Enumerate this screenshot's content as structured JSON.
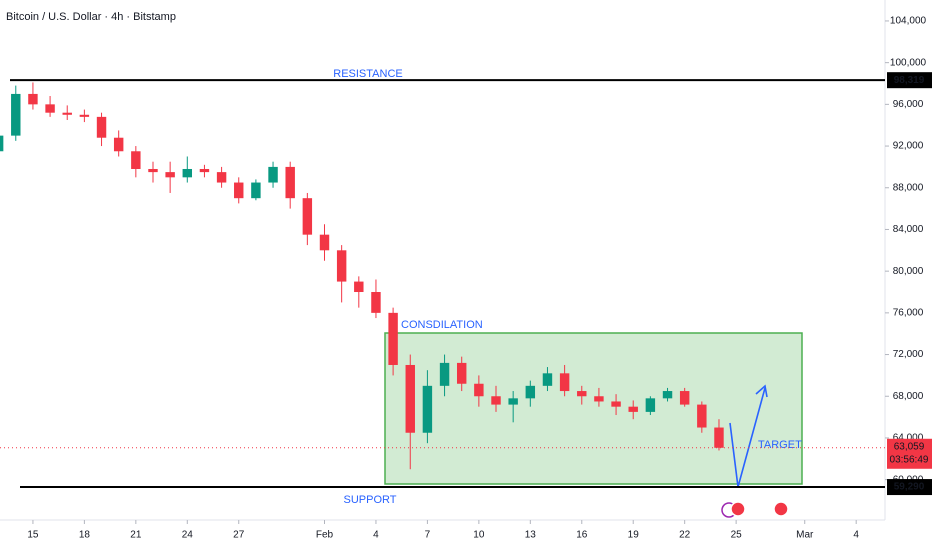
{
  "chart_data": {
    "type": "candlestick",
    "title": "Bitcoin / U.S. Dollar · 4h · Bitstamp",
    "x": [
      -2,
      -1,
      0,
      1,
      2,
      3,
      4,
      5,
      6,
      7,
      8,
      9,
      10,
      11,
      12,
      13,
      14,
      15,
      16,
      17,
      18,
      19,
      20,
      21,
      22,
      23,
      24,
      25,
      26,
      27,
      28,
      29,
      30,
      31,
      32,
      33,
      34,
      35,
      36,
      37,
      38,
      39,
      40
    ],
    "open": [
      91500,
      93000,
      97000,
      96000,
      95200,
      95000,
      94800,
      92800,
      91500,
      89800,
      89500,
      89000,
      89800,
      89500,
      88500,
      87000,
      88500,
      90000,
      87000,
      83500,
      82000,
      79000,
      78000,
      76000,
      71000,
      64500,
      69000,
      71200,
      69200,
      68000,
      67200,
      67800,
      69000,
      70200,
      68500,
      68000,
      67500,
      67000,
      66500,
      67800,
      68500,
      67200,
      65000
    ],
    "high": [
      93500,
      97800,
      98100,
      96800,
      95900,
      95500,
      95200,
      93500,
      92000,
      90500,
      90500,
      91000,
      90200,
      90000,
      89000,
      88800,
      90500,
      90500,
      87500,
      84500,
      82500,
      79500,
      79200,
      76500,
      72000,
      70500,
      72000,
      71800,
      70000,
      69000,
      68500,
      69500,
      70800,
      71000,
      69000,
      68800,
      68200,
      67600,
      68000,
      68800,
      68800,
      67500,
      65800
    ],
    "low": [
      91000,
      92500,
      95500,
      94800,
      94500,
      94300,
      92000,
      91000,
      89000,
      88500,
      87500,
      88500,
      89000,
      88000,
      86500,
      86800,
      88000,
      86000,
      82500,
      81000,
      77000,
      76500,
      75500,
      70000,
      61000,
      63500,
      68000,
      68500,
      67000,
      66500,
      65500,
      67000,
      68500,
      68000,
      67200,
      67000,
      66200,
      65800,
      66200,
      67500,
      67000,
      64500,
      62800
    ],
    "close": [
      93000,
      97000,
      96000,
      95200,
      95000,
      94800,
      92800,
      91500,
      89800,
      89500,
      89000,
      89800,
      89500,
      88500,
      87000,
      88500,
      90000,
      87000,
      83500,
      82000,
      79000,
      78000,
      76000,
      71000,
      64500,
      69000,
      71200,
      69200,
      68000,
      67200,
      67800,
      69000,
      70200,
      68500,
      68000,
      67500,
      67000,
      66500,
      67800,
      68500,
      67200,
      65000,
      63059
    ],
    "up_color": "#089981",
    "down_color": "#f23645",
    "xlim": [
      -1.92,
      49.68
    ],
    "xticks": [
      {
        "value": 0,
        "label": "15"
      },
      {
        "value": 3,
        "label": "18"
      },
      {
        "value": 6,
        "label": "21"
      },
      {
        "value": 9,
        "label": "24"
      },
      {
        "value": 12,
        "label": "27"
      },
      {
        "value": 17,
        "label": "Feb"
      },
      {
        "value": 20,
        "label": "4"
      },
      {
        "value": 23,
        "label": "7"
      },
      {
        "value": 26,
        "label": "10"
      },
      {
        "value": 29,
        "label": "13"
      },
      {
        "value": 32,
        "label": "16"
      },
      {
        "value": 35,
        "label": "19"
      },
      {
        "value": 38,
        "label": "22"
      },
      {
        "value": 41,
        "label": "25"
      },
      {
        "value": 45,
        "label": "Mar"
      },
      {
        "value": 48,
        "label": "4"
      }
    ],
    "ylim": [
      56130,
      106010
    ],
    "yticks": [
      {
        "value": 60000,
        "label": "60,000"
      },
      {
        "value": 64000,
        "label": "64,000"
      },
      {
        "value": 68000,
        "label": "68,000"
      },
      {
        "value": 72000,
        "label": "72,000"
      },
      {
        "value": 76000,
        "label": "76,000"
      },
      {
        "value": 80000,
        "label": "80,000"
      },
      {
        "value": 84000,
        "label": "84,000"
      },
      {
        "value": 88000,
        "label": "88,000"
      },
      {
        "value": 92000,
        "label": "92,000"
      },
      {
        "value": 96000,
        "label": "96,000"
      },
      {
        "value": 100000,
        "label": "100,000"
      },
      {
        "value": 104000,
        "label": "104,000"
      }
    ],
    "resistance": {
      "value": 98319,
      "label": "98,319",
      "text": "RESISTANCE"
    },
    "support": {
      "value": 59290,
      "label": "59,290",
      "text": "SUPPORT"
    },
    "last_price": {
      "value": 63059,
      "label": "63,059",
      "countdown": "03:56:49"
    },
    "annotations": {
      "consolidation": "CONSDILATION",
      "target": "TARGET"
    }
  }
}
